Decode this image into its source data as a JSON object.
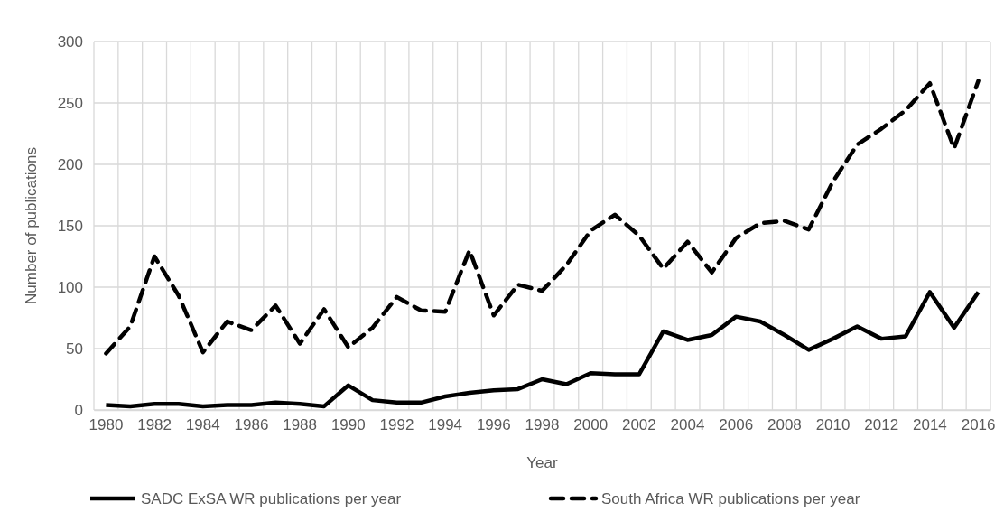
{
  "chart_data": {
    "type": "line",
    "xlabel": "Year",
    "ylabel": "Number of publications",
    "categories": [
      "1980",
      null,
      "1982",
      null,
      "1984",
      null,
      "1986",
      null,
      "1988",
      null,
      "1990",
      null,
      "1992",
      null,
      "1994",
      null,
      "1996",
      null,
      "1998",
      null,
      "2000",
      null,
      "2002",
      null,
      "2004",
      null,
      "2006",
      null,
      "2008",
      null,
      "2010",
      null,
      "2012",
      null,
      "2014",
      null,
      "2016"
    ],
    "series": [
      {
        "name": "SADC ExSA WR publications per year",
        "color": "#000000",
        "line_style": "solid",
        "values": [
          4,
          3,
          5,
          5,
          3,
          4,
          4,
          6,
          5,
          3,
          20,
          8,
          6,
          6,
          11,
          14,
          16,
          17,
          25,
          21,
          30,
          29,
          29,
          64,
          57,
          61,
          76,
          72,
          61,
          49,
          58,
          68,
          58,
          60,
          96,
          67,
          96
        ]
      },
      {
        "name": "South Africa WR publications per year",
        "color": "#000000",
        "line_style": "dashed",
        "values": [
          46,
          68,
          125,
          93,
          47,
          72,
          65,
          85,
          54,
          82,
          51,
          67,
          92,
          81,
          80,
          130,
          77,
          102,
          97,
          118,
          146,
          159,
          142,
          115,
          137,
          112,
          140,
          152,
          154,
          147,
          186,
          216,
          229,
          244,
          266,
          213,
          268
        ]
      }
    ],
    "ylim": [
      0,
      300
    ],
    "yticks": [
      0,
      50,
      100,
      150,
      200,
      250,
      300
    ],
    "grid": true,
    "legend": "bottom",
    "marker": "none"
  }
}
